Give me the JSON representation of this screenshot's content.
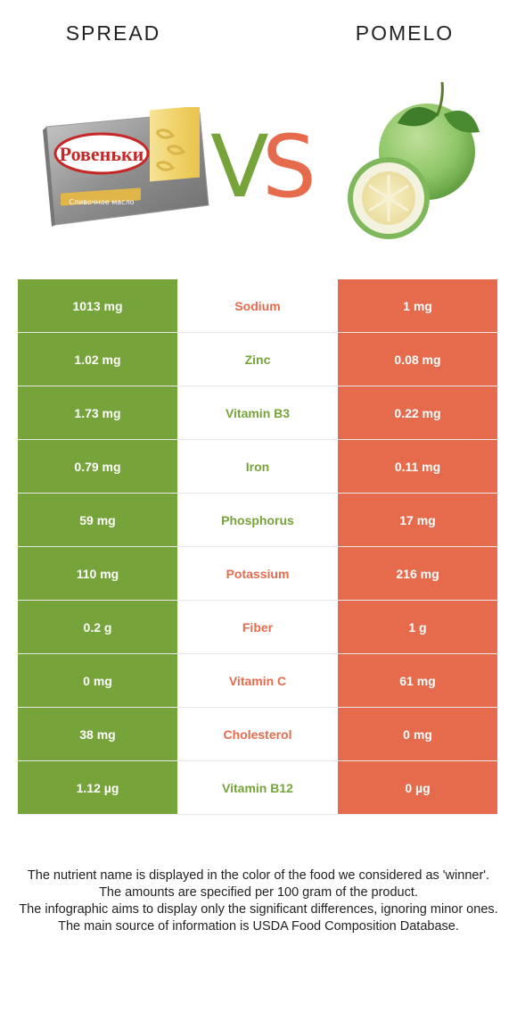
{
  "header": {
    "left_food": "SPREAD",
    "right_food": "POMELO"
  },
  "vs": {
    "v": "V",
    "s": "S"
  },
  "colors": {
    "left": "#76a33a",
    "right": "#e56b4c"
  },
  "left_image": {
    "brand_text": "Ровеньки",
    "sub_text": "Сливочное масло"
  },
  "rows": [
    {
      "left": "1013 mg",
      "nutrient": "Sodium",
      "right": "1 mg",
      "winner": "right"
    },
    {
      "left": "1.02 mg",
      "nutrient": "Zinc",
      "right": "0.08 mg",
      "winner": "left"
    },
    {
      "left": "1.73 mg",
      "nutrient": "Vitamin B3",
      "right": "0.22 mg",
      "winner": "left"
    },
    {
      "left": "0.79 mg",
      "nutrient": "Iron",
      "right": "0.11 mg",
      "winner": "left"
    },
    {
      "left": "59 mg",
      "nutrient": "Phosphorus",
      "right": "17 mg",
      "winner": "left"
    },
    {
      "left": "110 mg",
      "nutrient": "Potassium",
      "right": "216 mg",
      "winner": "right"
    },
    {
      "left": "0.2 g",
      "nutrient": "Fiber",
      "right": "1 g",
      "winner": "right"
    },
    {
      "left": "0 mg",
      "nutrient": "Vitamin C",
      "right": "61 mg",
      "winner": "right"
    },
    {
      "left": "38 mg",
      "nutrient": "Cholesterol",
      "right": "0 mg",
      "winner": "right"
    },
    {
      "left": "1.12 µg",
      "nutrient": "Vitamin B12",
      "right": "0 µg",
      "winner": "left"
    }
  ],
  "footnote": [
    "The nutrient name is displayed in the color of the food we considered as 'winner'.",
    "The amounts are specified per 100 gram of the product.",
    "The infographic aims to display only the significant differences, ignoring minor ones.",
    "The main source of information is USDA Food Composition Database."
  ]
}
